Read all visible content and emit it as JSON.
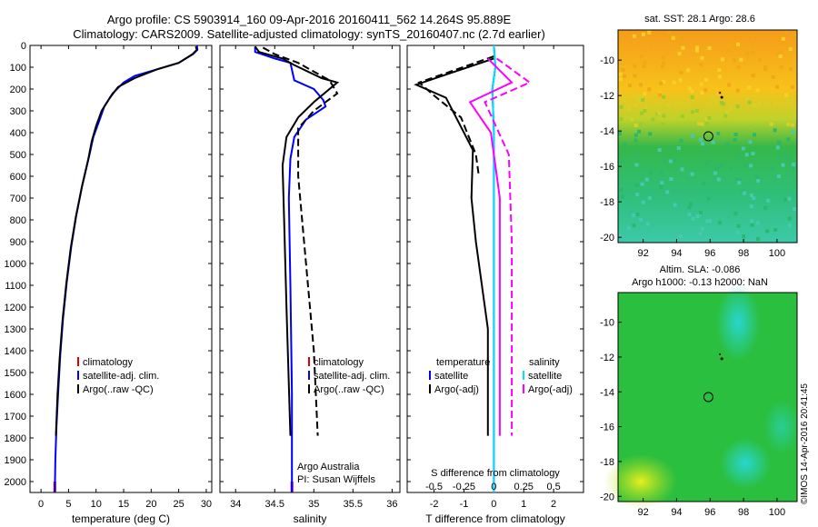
{
  "header": {
    "line1": "Argo profile: CS 5903914_160 09-Apr-2016 20160411_562 14.264S 95.889E",
    "line2": "Climatology: CARS2009. Satellite-adjusted climatology: synTS_20160407.nc (2.7d earlier)"
  },
  "colors": {
    "climatology": "#dd0000",
    "satellite": "#0000ff",
    "argo": "#000000",
    "salinity_argo": "#ff00ff",
    "salinity_sat": "#00e0ff"
  },
  "chart_data": [
    {
      "type": "line",
      "name": "temperature-profile",
      "xlabel": "temperature (deg C)",
      "ylabel": "",
      "xlim": [
        -2,
        31
      ],
      "ylim": [
        2050,
        0
      ],
      "xticks": [
        0,
        5,
        10,
        15,
        20,
        25,
        30
      ],
      "yticks": [
        0,
        100,
        200,
        300,
        400,
        500,
        600,
        700,
        800,
        900,
        1000,
        1100,
        1200,
        1300,
        1400,
        1500,
        1600,
        1700,
        1800,
        1900,
        2000
      ],
      "legend": [
        "climatology",
        "satellite-adj. clim.",
        "Argo(..raw -QC)"
      ],
      "series": [
        {
          "name": "climatology",
          "color": "red",
          "x": [
            2.5,
            2.5
          ],
          "y": [
            2000,
            2050
          ],
          "dash": false
        },
        {
          "name": "satellite-adj. clim.",
          "color": "blue",
          "x": [
            28.3,
            28.4,
            27.6,
            25,
            21,
            17,
            15,
            13,
            11.5,
            10.5,
            9.5,
            8.8,
            7.5,
            6.4,
            5.5,
            4.7,
            4,
            3.5,
            3.1,
            2.8,
            2.6,
            2.5
          ],
          "y": [
            0,
            20,
            40,
            80,
            110,
            140,
            170,
            220,
            280,
            350,
            420,
            500,
            640,
            780,
            920,
            1080,
            1250,
            1420,
            1600,
            1750,
            1900,
            2050
          ],
          "dash": false
        },
        {
          "name": "Argo",
          "color": "black",
          "x": [
            28.1,
            28.3,
            27.5,
            25,
            21,
            17,
            14,
            12.5,
            11,
            10,
            9.2,
            8.6,
            7.4,
            6.3,
            5.4,
            4.6,
            3.9,
            3.4,
            3.0,
            2.7
          ],
          "y": [
            5,
            20,
            40,
            80,
            110,
            150,
            190,
            240,
            300,
            370,
            440,
            520,
            650,
            790,
            930,
            1090,
            1260,
            1430,
            1600,
            1790
          ],
          "dash": false
        }
      ]
    },
    {
      "type": "line",
      "name": "salinity-profile",
      "xlabel": "salinity",
      "xlim": [
        33.8,
        36.1
      ],
      "ylim": [
        2050,
        0
      ],
      "xticks": [
        34,
        34.5,
        35,
        35.5,
        36
      ],
      "legend": [
        "climatology",
        "satellite-adj. clim.",
        "Argo(..raw -QC)"
      ],
      "annotation": [
        "Argo Australia",
        "PI: Susan Wijffels"
      ],
      "series": [
        {
          "name": "climatology",
          "color": "red",
          "x": [
            34.72,
            34.72
          ],
          "y": [
            2000,
            2050
          ],
          "dash": false
        },
        {
          "name": "satellite-adj. clim.",
          "color": "blue",
          "x": [
            34.25,
            34.25,
            34.5,
            34.7,
            34.75,
            35,
            35.12,
            35.15,
            34.9,
            34.75,
            34.7,
            34.68,
            34.7,
            34.72,
            34.72
          ],
          "y": [
            5,
            30,
            60,
            80,
            160,
            200,
            250,
            280,
            340,
            420,
            520,
            700,
            1100,
            1600,
            2050
          ],
          "dash": false
        },
        {
          "name": "Argo",
          "color": "black",
          "x": [
            34.25,
            34.3,
            34.6,
            34.75,
            35.1,
            35.3,
            35.0,
            34.8,
            34.65,
            34.6,
            34.62,
            34.65,
            34.7
          ],
          "y": [
            5,
            30,
            60,
            90,
            150,
            170,
            260,
            330,
            420,
            550,
            800,
            1200,
            1790
          ],
          "dash": false
        },
        {
          "name": "Argo(-QC)",
          "color": "black",
          "x": [
            34.35,
            34.5,
            34.8,
            35.2,
            35.3,
            35.0,
            34.8,
            34.8,
            34.9,
            35.0,
            35.05
          ],
          "y": [
            10,
            40,
            80,
            160,
            220,
            300,
            380,
            600,
            1000,
            1400,
            1790
          ],
          "dash": true
        }
      ]
    },
    {
      "type": "line",
      "name": "difference-profile",
      "xlabel": "T difference from climatology",
      "xlabel2": "S difference from climatology",
      "xlim": [
        -2.9,
        3.0
      ],
      "ylim": [
        2050,
        0
      ],
      "xticks": [
        -2,
        -1,
        0,
        1,
        2
      ],
      "xticks_s": [
        -0.5,
        -0.25,
        0,
        0.25,
        0.5
      ],
      "legend_t": [
        "temperature",
        "satellite",
        "Argo(-adj)"
      ],
      "legend_s": [
        "salinity",
        "satellite",
        "Argo(-adj)"
      ],
      "series": [
        {
          "name": "T satellite",
          "color": "blue",
          "x": [
            0,
            0.05,
            -0.05,
            0,
            0,
            0
          ],
          "y": [
            0,
            100,
            200,
            400,
            1000,
            2050
          ],
          "dash": false
        },
        {
          "name": "T Argo",
          "color": "black",
          "x": [
            0,
            -2.6,
            -1.6,
            -1.3,
            -0.7,
            -0.75,
            -0.6,
            -0.4,
            -0.2,
            -0.2
          ],
          "y": [
            60,
            180,
            240,
            320,
            480,
            700,
            900,
            1100,
            1300,
            1790
          ],
          "dash": false
        },
        {
          "name": "T Argo(-adj)",
          "color": "black",
          "x": [
            0,
            -2.5,
            -2,
            -1.1,
            -0.6,
            -0.5
          ],
          "y": [
            50,
            170,
            230,
            330,
            500,
            600
          ],
          "dash": true
        },
        {
          "name": "S satellite",
          "color": "cyan",
          "x": [
            0,
            0.05,
            -0.05,
            0,
            0,
            0
          ],
          "y": [
            0,
            100,
            200,
            400,
            1000,
            2050
          ],
          "dash": false
        },
        {
          "name": "S Argo",
          "color": "magenta",
          "x": [
            -0.2,
            0.6,
            -0.8,
            -0.1,
            0.2,
            0.2
          ],
          "y": [
            60,
            170,
            260,
            400,
            700,
            1790
          ],
          "dash": false
        },
        {
          "name": "S Argo(-adj)",
          "color": "magenta",
          "x": [
            0.1,
            1.2,
            -0.3,
            0.5,
            0.6,
            0.6
          ],
          "y": [
            60,
            170,
            260,
            500,
            900,
            1790
          ],
          "dash": true
        }
      ]
    },
    {
      "type": "heatmap",
      "name": "sst-map",
      "title": "sat. SST: 28.1 Argo: 28.6",
      "xticks": [
        92,
        94,
        96,
        98,
        100
      ],
      "yticks": [
        -10,
        -12,
        -14,
        -16,
        -18,
        -20
      ],
      "xlim": [
        90.5,
        101.2
      ],
      "ylim": [
        -20.3,
        -8.3
      ],
      "marker": {
        "x": 95.9,
        "y": -14.3
      },
      "track": {
        "x": 96.7,
        "y": -12.1
      }
    },
    {
      "type": "heatmap",
      "name": "sla-map",
      "title": "Altim. SLA: -0.086",
      "subtitle": "Argo h1000: -0.13 h2000: NaN",
      "xticks": [
        92,
        94,
        96,
        98,
        100
      ],
      "yticks": [
        -10,
        -12,
        -14,
        -16,
        -18,
        -20
      ],
      "xlim": [
        90.5,
        101.2
      ],
      "ylim": [
        -20.3,
        -8.3
      ],
      "marker": {
        "x": 95.9,
        "y": -14.3
      },
      "track": {
        "x": 96.7,
        "y": -12.1
      }
    }
  ],
  "footer": {
    "credit": "©IMOS 14-Apr-2016 20:41:45"
  }
}
